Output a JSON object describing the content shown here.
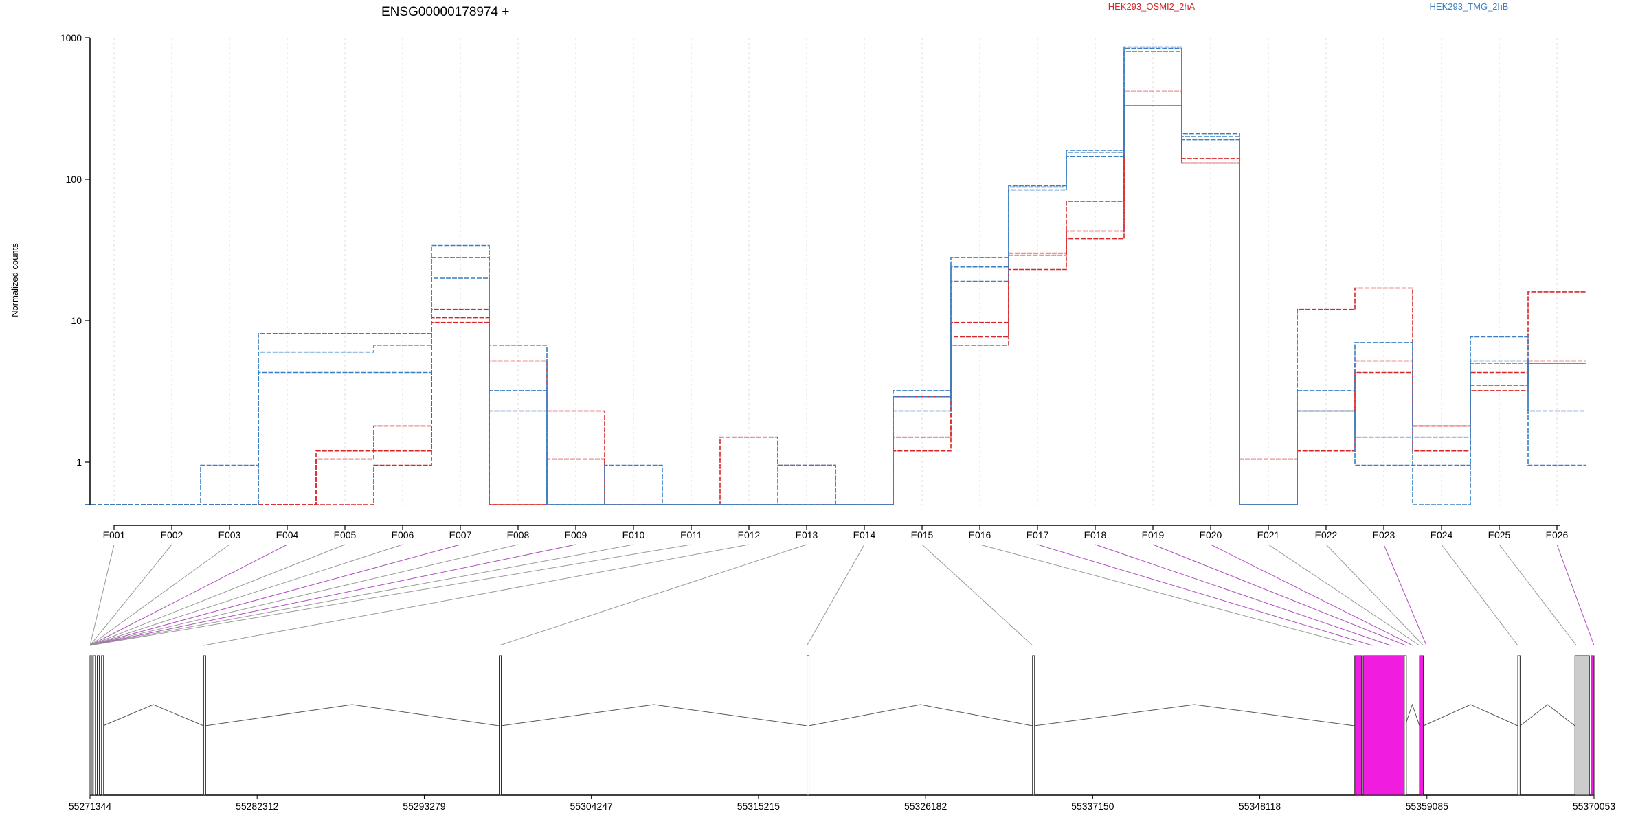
{
  "chart_data": {
    "type": "line",
    "title": "ENSG00000178974 +",
    "ylabel": "Normalized counts",
    "yscale": "log",
    "ylim": [
      0.5,
      1000
    ],
    "y_ticks": [
      {
        "label": "1",
        "value": 1
      },
      {
        "label": "10",
        "value": 10
      },
      {
        "label": "100",
        "value": 100
      },
      {
        "label": "1000",
        "value": 1000
      }
    ],
    "grid": "vertical dotted lines at each exon",
    "legend": [
      {
        "name": "HEK293_OSMI2_2hA",
        "color": "#d62728"
      },
      {
        "name": "HEK293_TMG_2hB",
        "color": "#3a7fc1"
      }
    ],
    "categories": [
      "E001",
      "E002",
      "E003",
      "E004",
      "E005",
      "E006",
      "E007",
      "E008",
      "E009",
      "E010",
      "E011",
      "E012",
      "E013",
      "E014",
      "E015",
      "E016",
      "E017",
      "E018",
      "E019",
      "E020",
      "E021",
      "E022",
      "E023",
      "E024",
      "E025",
      "E026"
    ],
    "series": [
      {
        "group": "HEK293_OSMI2_2hA",
        "color": "#d62728",
        "values": [
          0.5,
          0.5,
          0.5,
          0.5,
          1.05,
          1.2,
          12,
          0.5,
          1.05,
          0.5,
          0.5,
          0.5,
          0.5,
          0.5,
          1.2,
          6.7,
          23,
          38,
          330,
          130,
          0.5,
          2.3,
          4.3,
          1.2,
          3.2,
          5.2
        ]
      },
      {
        "group": "HEK293_OSMI2_2hA",
        "color": "#d62728",
        "values": [
          0.5,
          0.5,
          0.5,
          0.5,
          1.2,
          1.8,
          10.5,
          5.2,
          2.3,
          0.5,
          0.5,
          1.5,
          0.95,
          0.5,
          2.9,
          7.7,
          29,
          43,
          330,
          130,
          0.5,
          1.2,
          5.2,
          1.8,
          4.3,
          5.0
        ]
      },
      {
        "group": "HEK293_OSMI2_2hA",
        "color": "#d62728",
        "values": [
          0.5,
          0.5,
          0.5,
          0.5,
          0.5,
          0.95,
          9.7,
          0.5,
          0.5,
          0.5,
          0.5,
          0.5,
          0.5,
          0.5,
          1.5,
          9.7,
          30,
          70,
          420,
          140,
          1.05,
          12,
          17,
          1.8,
          3.5,
          16
        ]
      },
      {
        "group": "HEK293_TMG_2hB",
        "color": "#3a7fc1",
        "values": [
          0.5,
          0.5,
          0.95,
          8.1,
          8.1,
          8.1,
          34,
          6.7,
          0.5,
          0.95,
          0.5,
          0.5,
          0.95,
          0.5,
          3.2,
          28,
          90,
          160,
          860,
          210,
          0.5,
          3.2,
          7.0,
          1.5,
          7.7,
          2.3
        ]
      },
      {
        "group": "HEK293_TMG_2hB",
        "color": "#3a7fc1",
        "values": [
          0.5,
          0.5,
          0.5,
          6.0,
          6.0,
          6.7,
          28,
          2.3,
          0.5,
          0.5,
          0.5,
          0.5,
          0.5,
          0.5,
          2.9,
          24,
          88,
          155,
          840,
          200,
          0.5,
          2.3,
          0.95,
          0.95,
          5.2,
          5.0
        ]
      },
      {
        "group": "HEK293_TMG_2hB",
        "color": "#3a7fc1",
        "values": [
          0.5,
          0.5,
          0.5,
          4.3,
          4.3,
          4.3,
          20,
          3.2,
          0.5,
          0.5,
          0.5,
          0.5,
          0.5,
          0.5,
          2.3,
          19,
          84,
          145,
          800,
          190,
          0.5,
          2.3,
          1.5,
          0.5,
          5.0,
          0.95
        ]
      }
    ],
    "exon_link_colors": [
      "#999999",
      "#999999",
      "#999999",
      "#b04cc0",
      "#999999",
      "#999999",
      "#b04cc0",
      "#999999",
      "#b04cc0",
      "#999999",
      "#999999",
      "#999999",
      "#999999",
      "#999999",
      "#999999",
      "#999999",
      "#b04cc0",
      "#b04cc0",
      "#b04cc0",
      "#b04cc0",
      "#999999",
      "#999999",
      "#b04cc0",
      "#999999",
      "#999999",
      "#b04cc0"
    ],
    "gene_model": {
      "coordinates": [
        "55271344",
        "55282312",
        "55293279",
        "55304247",
        "55315215",
        "55326182",
        "55337150",
        "55348118",
        "55359085",
        "55370053"
      ],
      "range": [
        55271344,
        55370053
      ],
      "exons": [
        {
          "start": 55271344,
          "end": 55271430,
          "fill": "#ffffff"
        },
        {
          "start": 55271560,
          "end": 55271680,
          "fill": "#ffffff"
        },
        {
          "start": 55271820,
          "end": 55271920,
          "fill": "#ffffff"
        },
        {
          "start": 55272100,
          "end": 55272200,
          "fill": "#ffffff"
        },
        {
          "start": 55278800,
          "end": 55278900,
          "fill": "#ffffff"
        },
        {
          "start": 55298200,
          "end": 55298300,
          "fill": "#ffffff"
        },
        {
          "start": 55318400,
          "end": 55318500,
          "fill": "#ffffff"
        },
        {
          "start": 55333200,
          "end": 55333300,
          "fill": "#ffffff"
        },
        {
          "start": 55354350,
          "end": 55354800,
          "fill": "#f01de0"
        },
        {
          "start": 55354900,
          "end": 55357600,
          "fill": "#f01de0"
        },
        {
          "start": 55357600,
          "end": 55357650,
          "fill": "#ffffff"
        },
        {
          "start": 55358600,
          "end": 55358850,
          "fill": "#f01de0"
        },
        {
          "start": 55365050,
          "end": 55365200,
          "fill": "#ffffff"
        },
        {
          "start": 55368800,
          "end": 55369750,
          "fill": "#cccccc"
        },
        {
          "start": 55369850,
          "end": 55370053,
          "fill": "#f01de0"
        }
      ],
      "exon_anchor_positions": [
        55271344,
        55271344,
        55271344,
        55271344,
        55271344,
        55271344,
        55271344,
        55271344,
        55271344,
        55271344,
        55271344,
        55278800,
        55298200,
        55318400,
        55333200,
        55354350,
        55355500,
        55356700,
        55357700,
        55358150,
        55358600,
        55358850,
        55359050,
        55365050,
        55368900,
        55370053
      ]
    }
  }
}
